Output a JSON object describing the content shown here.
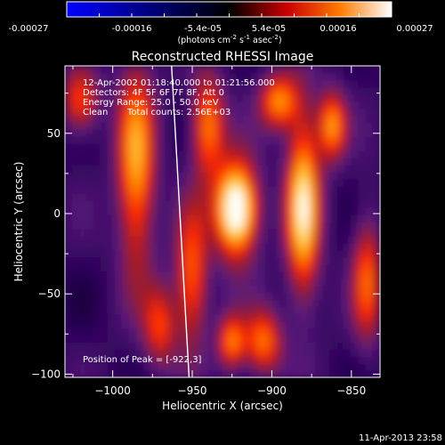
{
  "colorbar": {
    "ticks": [
      "-0.00027",
      "-0.00016",
      "-5.4e-05",
      "5.4e-05",
      "0.00016",
      "0.00027"
    ],
    "unit_main": "(photons cm",
    "unit_exp1": "-2",
    "unit_mid": " s",
    "unit_exp2": "-1",
    "unit_tail": " asec",
    "unit_exp3": "-2",
    "unit_close": ")",
    "range": [
      -0.00027,
      0.00027
    ]
  },
  "annotations": {
    "time_range": "12-Apr-2002 01:18:40.000 to 01:21:56.000",
    "detectors": "Detectors: 4F 5F 6F 7F 8F, Att 0",
    "energy": "Energy Range: 25.0 - 50.0 keV",
    "clean_label": "Clean",
    "total_counts": "Total counts: 2.56E+03",
    "peak": "Position of Peak = [-922,3]"
  },
  "footer": {
    "timestamp": "11-Apr-2013 23:58"
  },
  "chart_data": {
    "type": "heatmap",
    "title": "Reconstructed RHESSI Image",
    "xlabel": "Heliocentric X (arcsec)",
    "ylabel": "Heliocentric Y (arcsec)",
    "xlim": [
      -1030,
      -832
    ],
    "ylim": [
      -102,
      92
    ],
    "x_ticks": [
      -1000,
      -950,
      -900,
      -850
    ],
    "y_ticks": [
      -100,
      -50,
      0,
      50
    ],
    "x_tick_labels": [
      "−1000",
      "−950",
      "−900",
      "−850"
    ],
    "y_tick_labels": [
      "−100",
      "−50",
      "0",
      "50"
    ],
    "peak": {
      "x": -922,
      "y": 3,
      "value": 0.00027
    },
    "limb": {
      "x_at_top": -963,
      "x_at_bottom": -952
    },
    "colormap": [
      "#000000",
      "#2a0058",
      "#5a1a7a",
      "#a01a2a",
      "#ff2a00",
      "#ff8a00",
      "#ffd04a",
      "#ffffff"
    ],
    "sources": [
      {
        "x": -922,
        "y": 3,
        "sx": 9,
        "sy": 20,
        "amp": 1.0
      },
      {
        "x": -880,
        "y": 5,
        "sx": 7,
        "sy": 40,
        "amp": 0.75
      },
      {
        "x": -862,
        "y": 55,
        "sx": 6,
        "sy": 15,
        "amp": 0.55
      },
      {
        "x": -895,
        "y": 70,
        "sx": 8,
        "sy": 12,
        "amp": 0.55
      },
      {
        "x": -940,
        "y": 55,
        "sx": 7,
        "sy": 22,
        "amp": 0.55
      },
      {
        "x": -985,
        "y": 30,
        "sx": 8,
        "sy": 45,
        "amp": 0.6
      },
      {
        "x": -905,
        "y": -80,
        "sx": 8,
        "sy": 14,
        "amp": 0.5
      },
      {
        "x": -925,
        "y": -80,
        "sx": 6,
        "sy": 12,
        "amp": 0.5
      },
      {
        "x": -950,
        "y": -40,
        "sx": 7,
        "sy": 30,
        "amp": 0.5
      },
      {
        "x": -840,
        "y": -40,
        "sx": 6,
        "sy": 28,
        "amp": 0.45
      },
      {
        "x": -1020,
        "y": 70,
        "sx": 8,
        "sy": 14,
        "amp": 0.45
      },
      {
        "x": -970,
        "y": -70,
        "sx": 7,
        "sy": 18,
        "amp": 0.4
      }
    ]
  }
}
